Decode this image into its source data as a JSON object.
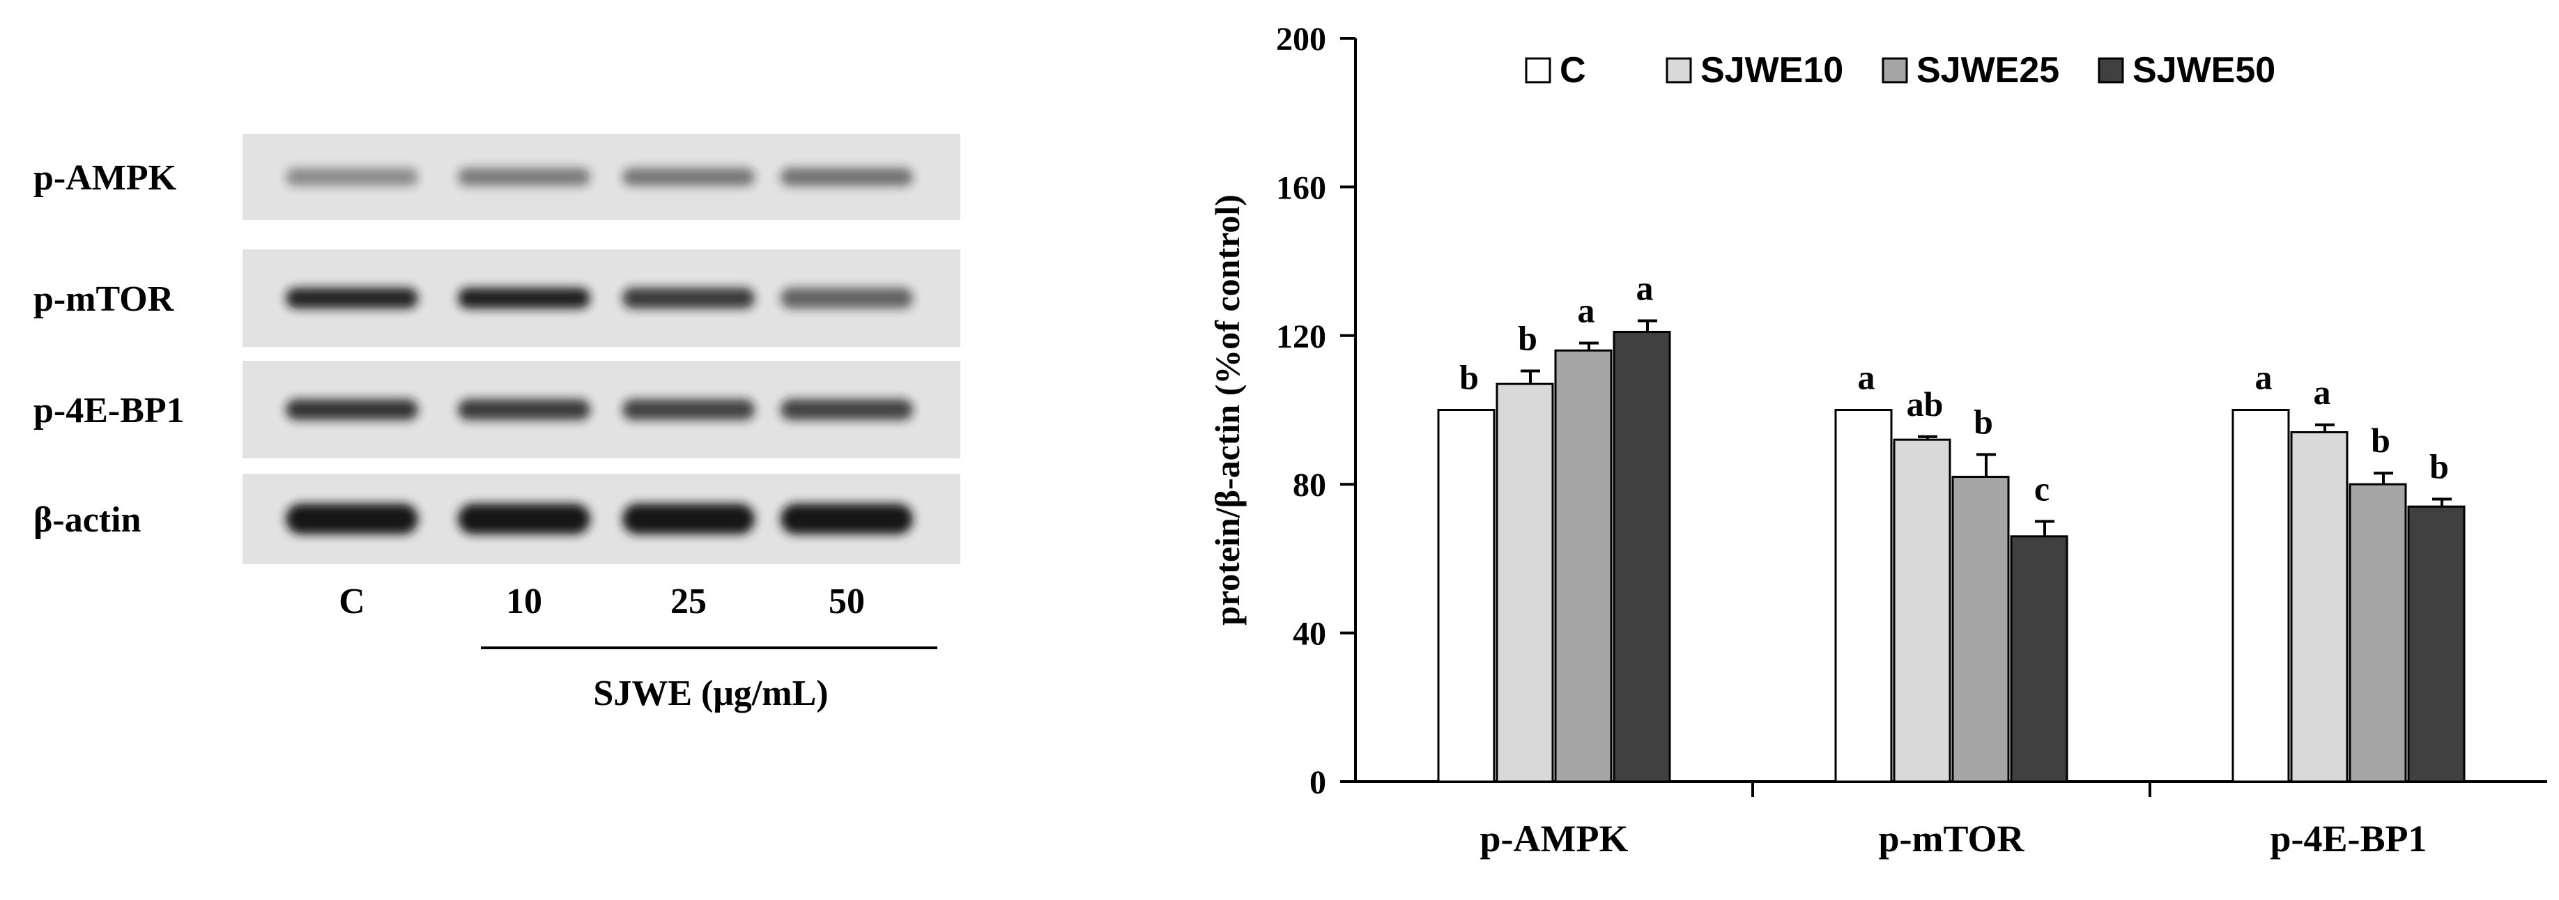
{
  "blot": {
    "rows": [
      "p-AMPK",
      "p-mTOR",
      "p-4E-BP1",
      "β-actin"
    ],
    "lanes": [
      "C",
      "10",
      "25",
      "50"
    ],
    "treatment_label": "SJWE (μg/mL)",
    "band_intensity": [
      [
        0.42,
        0.5,
        0.52,
        0.55
      ],
      [
        0.92,
        0.95,
        0.82,
        0.62
      ],
      [
        0.85,
        0.82,
        0.78,
        0.78
      ],
      [
        1.0,
        1.0,
        1.0,
        1.0
      ]
    ],
    "colors": {
      "membrane": "#e2e2e2",
      "band": "#141414"
    }
  },
  "chart_data": {
    "type": "bar",
    "categories": [
      "p-AMPK",
      "p-mTOR",
      "p-4E-BP1"
    ],
    "series": [
      {
        "name": "C",
        "values": [
          100,
          100,
          100
        ],
        "errors": [
          0,
          0,
          0
        ],
        "color": "#ffffff"
      },
      {
        "name": "SJWE10",
        "values": [
          107,
          92,
          94
        ],
        "errors": [
          3.5,
          0.8,
          2
        ],
        "color": "#d9d9d9"
      },
      {
        "name": "SJWE25",
        "values": [
          116,
          82,
          80
        ],
        "errors": [
          2,
          6,
          3
        ],
        "color": "#a6a6a6"
      },
      {
        "name": "SJWE50",
        "values": [
          121,
          66,
          74
        ],
        "errors": [
          3,
          4,
          2
        ],
        "color": "#404040"
      }
    ],
    "significance": [
      [
        "b",
        "b",
        "a",
        "a"
      ],
      [
        "a",
        "ab",
        "b",
        "c"
      ],
      [
        "a",
        "a",
        "b",
        "b"
      ]
    ],
    "xlabel": "",
    "ylabel": "protein/β-actin (%of control)",
    "ylim": [
      0,
      200
    ],
    "yticks": [
      0,
      40,
      80,
      120,
      160,
      200
    ],
    "legend_position": "top",
    "grid": false
  }
}
